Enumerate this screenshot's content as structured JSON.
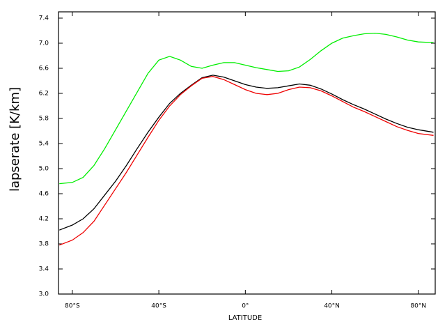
{
  "chart_data": {
    "type": "line",
    "x_label": "LATITUDE",
    "y_label": "lapserate [K/km]",
    "x": [
      -86,
      -80,
      -75,
      -70,
      -65,
      -60,
      -55,
      -50,
      -45,
      -40,
      -35,
      -30,
      -25,
      -20,
      -15,
      -10,
      -5,
      0,
      5,
      10,
      15,
      20,
      25,
      30,
      35,
      40,
      45,
      50,
      55,
      60,
      65,
      70,
      75,
      80,
      87
    ],
    "series": [
      {
        "color": "#00ee00",
        "values": [
          4.76,
          4.78,
          4.86,
          5.05,
          5.32,
          5.62,
          5.92,
          6.22,
          6.52,
          6.73,
          6.79,
          6.73,
          6.63,
          6.6,
          6.65,
          6.69,
          6.69,
          6.65,
          6.61,
          6.58,
          6.55,
          6.56,
          6.62,
          6.74,
          6.88,
          7.0,
          7.08,
          7.12,
          7.15,
          7.16,
          7.14,
          7.1,
          7.05,
          7.02,
          7.01
        ]
      },
      {
        "color": "#000000",
        "values": [
          4.02,
          4.1,
          4.2,
          4.36,
          4.58,
          4.8,
          5.05,
          5.32,
          5.58,
          5.82,
          6.04,
          6.2,
          6.33,
          6.45,
          6.49,
          6.46,
          6.4,
          6.34,
          6.3,
          6.28,
          6.29,
          6.32,
          6.35,
          6.33,
          6.27,
          6.19,
          6.1,
          6.02,
          5.95,
          5.87,
          5.79,
          5.72,
          5.66,
          5.62,
          5.58
        ]
      },
      {
        "color": "#ee0000",
        "values": [
          3.78,
          3.86,
          3.98,
          4.16,
          4.42,
          4.68,
          4.94,
          5.22,
          5.5,
          5.77,
          6.0,
          6.18,
          6.32,
          6.44,
          6.47,
          6.42,
          6.34,
          6.26,
          6.2,
          6.18,
          6.2,
          6.26,
          6.3,
          6.29,
          6.24,
          6.16,
          6.07,
          5.98,
          5.91,
          5.83,
          5.75,
          5.67,
          5.61,
          5.56,
          5.53
        ]
      }
    ],
    "xlim": [
      -86.4,
      87.8
    ],
    "xticks": [
      {
        "value": -80,
        "label": "80°S"
      },
      {
        "value": -40,
        "label": "40°S"
      },
      {
        "value": 0,
        "label": "0°"
      },
      {
        "value": 40,
        "label": "40°N"
      },
      {
        "value": 80,
        "label": "80°N"
      }
    ],
    "ylim": [
      3,
      7.5
    ],
    "yticks": [
      {
        "value": 3,
        "label": "3.0"
      },
      3.4,
      3.8,
      4.2,
      4.6,
      {
        "value": 5,
        "label": "5.0"
      },
      5.4,
      5.8,
      6.2,
      6.6,
      {
        "value": 7,
        "label": "7.0"
      },
      7.4
    ]
  }
}
